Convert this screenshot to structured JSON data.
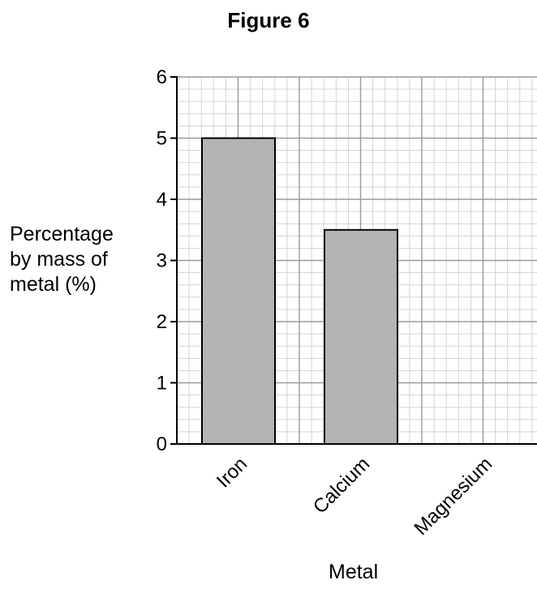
{
  "figure_title": "Figure 6",
  "chart_data": {
    "type": "bar",
    "title": "Figure 6",
    "xlabel": "Metal",
    "ylabel_lines": [
      "Percentage",
      "by mass of",
      "metal (%)"
    ],
    "categories": [
      "Iron",
      "Calcium",
      "Magnesium"
    ],
    "values": [
      5,
      3.5,
      null
    ],
    "ylim": [
      0,
      6
    ],
    "yticks": [
      "0",
      "1",
      "2",
      "3",
      "4",
      "5",
      "6"
    ],
    "grid": true,
    "bar_color": "#b4b4b4",
    "grid_major_color": "#9a9a9a",
    "grid_minor_color": "#cfcfcf"
  }
}
